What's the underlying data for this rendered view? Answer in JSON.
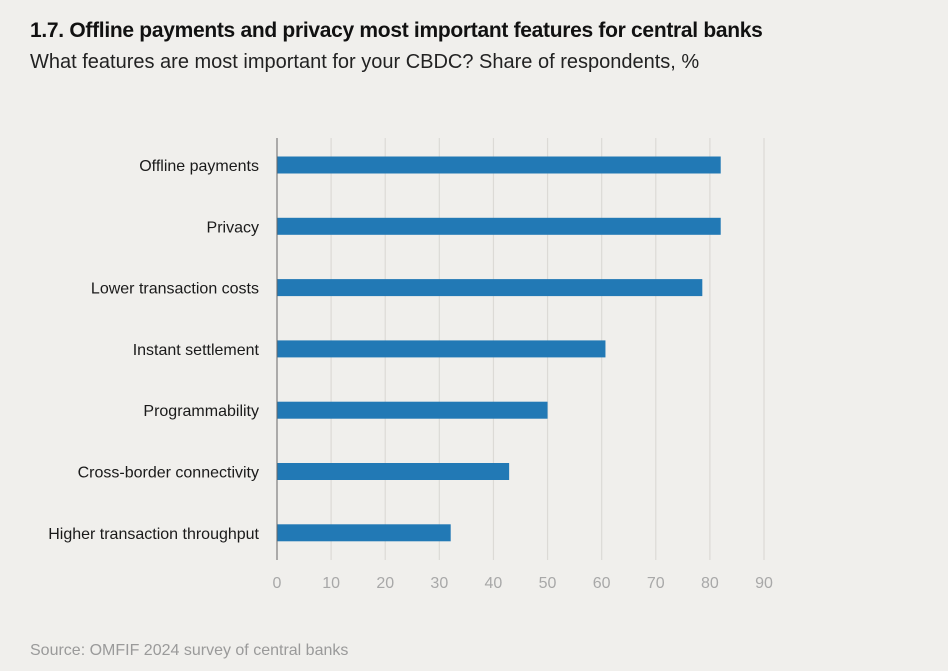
{
  "chart_data": {
    "type": "bar",
    "orientation": "horizontal",
    "title": "1.7. Offline payments and privacy most important features for central banks",
    "subtitle": "What features are most important for your CBDC? Share of respondents, %",
    "categories": [
      "Offline payments",
      "Privacy",
      "Lower transaction costs",
      "Instant settlement",
      "Programmability",
      "Cross-border connectivity",
      "Higher transaction throughput"
    ],
    "values": [
      82,
      82,
      78.6,
      60.7,
      50,
      42.9,
      32.1
    ],
    "xlabel": "",
    "ylabel": "",
    "xlim": [
      0,
      90
    ],
    "xticks": [
      "0",
      "10",
      "20",
      "30",
      "40",
      "50",
      "60",
      "70",
      "80",
      "90"
    ],
    "grid": true,
    "legend": "none",
    "bar_color": "#2279b5",
    "source": "Source: OMFIF 2024 survey of central banks"
  }
}
